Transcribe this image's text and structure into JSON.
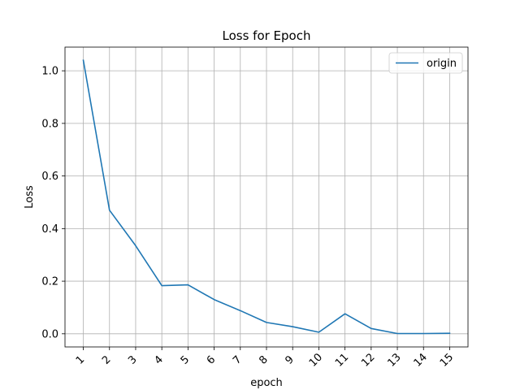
{
  "chart_data": {
    "type": "line",
    "title": "Loss for Epoch",
    "xlabel": "epoch",
    "ylabel": "Loss",
    "x": [
      1,
      2,
      3,
      4,
      5,
      6,
      7,
      8,
      9,
      10,
      11,
      12,
      13,
      14,
      15
    ],
    "xtick_labels": [
      "1",
      "2",
      "3",
      "4",
      "5",
      "6",
      "7",
      "8",
      "9",
      "10",
      "11",
      "12",
      "13",
      "14",
      "15"
    ],
    "yticks": [
      0.0,
      0.2,
      0.4,
      0.6,
      0.8,
      1.0
    ],
    "ytick_labels": [
      "0.0",
      "0.2",
      "0.4",
      "0.6",
      "0.8",
      "1.0"
    ],
    "xlim": [
      0.3,
      15.7
    ],
    "ylim": [
      -0.05,
      1.09
    ],
    "grid": true,
    "legend_position": "top-right",
    "series": [
      {
        "name": "origin",
        "color": "#1f77b4",
        "values": [
          1.04,
          0.47,
          0.335,
          0.183,
          0.186,
          0.13,
          0.088,
          0.043,
          0.027,
          0.006,
          0.076,
          0.02,
          0.001,
          0.001,
          0.002
        ]
      }
    ]
  }
}
